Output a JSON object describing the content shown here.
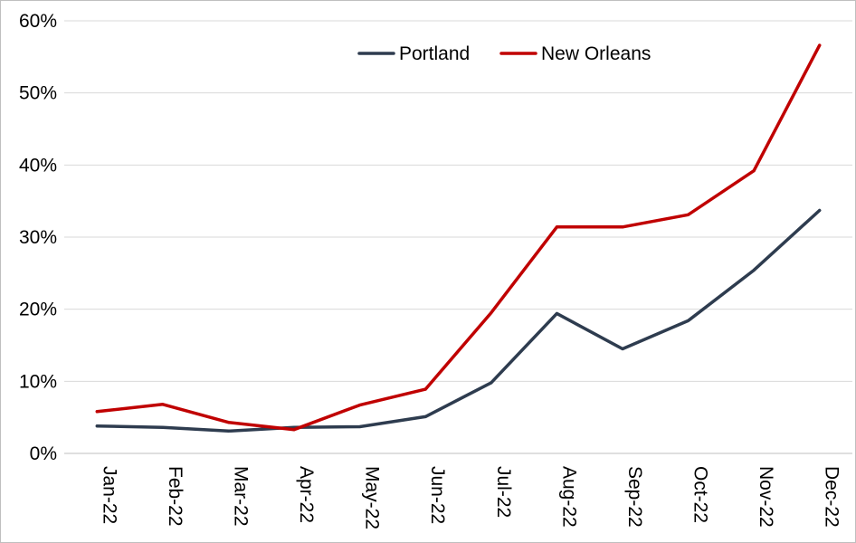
{
  "chart_data": {
    "type": "line",
    "title": "",
    "xlabel": "",
    "ylabel": "",
    "categories": [
      "Jan-22",
      "Feb-22",
      "Mar-22",
      "Apr-22",
      "May-22",
      "Jun-22",
      "Jul-22",
      "Aug-22",
      "Sep-22",
      "Oct-22",
      "Nov-22",
      "Dec-22"
    ],
    "ylim": [
      0,
      0.6
    ],
    "yticks": [
      0,
      0.1,
      0.2,
      0.3,
      0.4,
      0.5,
      0.6
    ],
    "ytick_labels": [
      "0%",
      "10%",
      "20%",
      "30%",
      "40%",
      "50%",
      "60%"
    ],
    "grid": true,
    "legend": "top-right",
    "series": [
      {
        "name": "Portland",
        "color": "#2e3c4f",
        "values": [
          0.038,
          0.036,
          0.031,
          0.036,
          0.037,
          0.051,
          0.098,
          0.194,
          0.145,
          0.184,
          0.254,
          0.337
        ]
      },
      {
        "name": "New Orleans",
        "color": "#c00000",
        "values": [
          0.058,
          0.068,
          0.043,
          0.033,
          0.067,
          0.089,
          0.195,
          0.314,
          0.314,
          0.331,
          0.392,
          0.566
        ]
      }
    ]
  }
}
